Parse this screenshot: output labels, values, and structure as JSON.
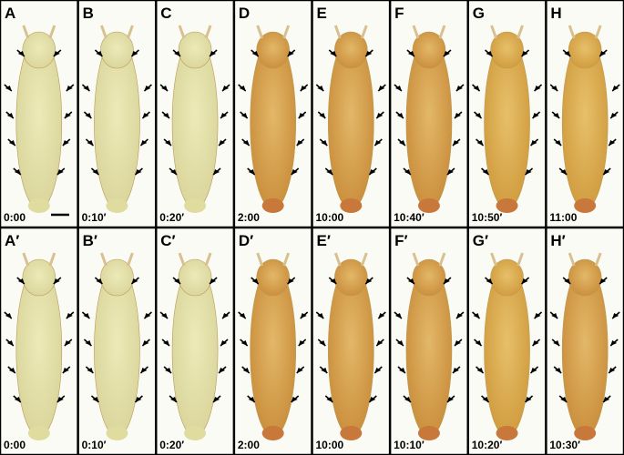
{
  "rows": [
    {
      "panels": [
        {
          "label": "A",
          "time": "0:00"
        },
        {
          "label": "B",
          "time": "0:10′"
        },
        {
          "label": "C",
          "time": "0:20′"
        },
        {
          "label": "D",
          "time": "2:00"
        },
        {
          "label": "E",
          "time": "10:00"
        },
        {
          "label": "F",
          "time": "10:40′"
        },
        {
          "label": "G",
          "time": "10:50′"
        },
        {
          "label": "H",
          "time": "11:00"
        }
      ]
    },
    {
      "panels": [
        {
          "label": "A′",
          "time": "0:00"
        },
        {
          "label": "B′",
          "time": "0:10′"
        },
        {
          "label": "C′",
          "time": "0:20′"
        },
        {
          "label": "D′",
          "time": "2:00"
        },
        {
          "label": "E′",
          "time": "10:00"
        },
        {
          "label": "F′",
          "time": "10:10′"
        },
        {
          "label": "G′",
          "time": "10:20′"
        },
        {
          "label": "H′",
          "time": "10:30′"
        }
      ]
    }
  ]
}
